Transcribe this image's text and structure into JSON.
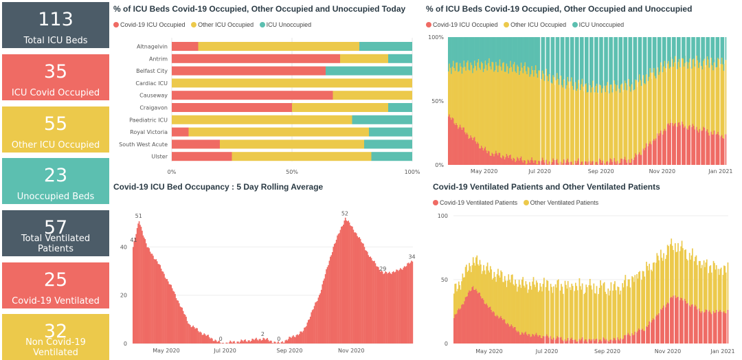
{
  "colors": {
    "covid": "#ef6b64",
    "other": "#ecc94b",
    "unoccupied": "#5cbfb0",
    "dark": "#4c5c68"
  },
  "kpis": [
    {
      "value": "113",
      "label": "Total ICU Beds",
      "color": "dark"
    },
    {
      "value": "35",
      "label": "ICU Covid Occupied",
      "color": "red"
    },
    {
      "value": "55",
      "label": "Other ICU Occupied",
      "color": "yellow"
    },
    {
      "value": "23",
      "label": "Unoccupied Beds",
      "color": "teal"
    },
    {
      "value": "57",
      "label": "Total Ventilated Patients",
      "color": "dark"
    },
    {
      "value": "25",
      "label": "Covid-19 Ventilated",
      "color": "red"
    },
    {
      "value": "32",
      "label": "Non Covid-19 Ventilated",
      "color": "yellow"
    }
  ],
  "chart_data": [
    {
      "type": "bar",
      "orientation": "horizontal",
      "stacked": "100%",
      "title": "% of ICU Beds Covid-19 Occupied, Other Occupied and Unoccupied Today",
      "legend": [
        "Covid-19 ICU Occupied",
        "Other ICU Occupied",
        "ICU Unoccupied"
      ],
      "categories": [
        "Altnagelvin",
        "Antrim",
        "Belfast City",
        "Cardiac ICU",
        "Causeway",
        "Craigavon",
        "Paediatric ICU",
        "Royal Victoria",
        "South West Acute",
        "Ulster"
      ],
      "series": [
        {
          "name": "Covid-19 ICU Occupied",
          "values": [
            11,
            70,
            64,
            0,
            67,
            50,
            0,
            7,
            20,
            25
          ]
        },
        {
          "name": "Other ICU Occupied",
          "values": [
            67,
            20,
            0,
            100,
            33,
            40,
            75,
            75,
            60,
            58
          ]
        },
        {
          "name": "ICU Unoccupied",
          "values": [
            22,
            10,
            36,
            0,
            0,
            10,
            25,
            18,
            20,
            17
          ]
        }
      ],
      "xticks": [
        "0%",
        "50%",
        "100%"
      ]
    },
    {
      "type": "bar",
      "stacked": "100%",
      "title": "% of ICU Beds Covid-19 Occupied, Other Occupied and Unoccupied",
      "legend": [
        "Covid-19 ICU Occupied",
        "Other ICU Occupied",
        "ICU Unoccupied"
      ],
      "x_range": [
        "2020-03-25",
        "2021-01-05"
      ],
      "knots": {
        "covid": [
          [
            0,
            38
          ],
          [
            40,
            10
          ],
          [
            80,
            3
          ],
          [
            150,
            2
          ],
          [
            190,
            4
          ],
          [
            230,
            33
          ],
          [
            260,
            28
          ],
          [
            286,
            22
          ]
        ],
        "other": [
          [
            0,
            38
          ],
          [
            40,
            68
          ],
          [
            80,
            72
          ],
          [
            120,
            62
          ],
          [
            150,
            58
          ],
          [
            190,
            58
          ],
          [
            230,
            47
          ],
          [
            260,
            52
          ],
          [
            286,
            57
          ]
        ]
      },
      "xticks": [
        "May 2020",
        "Jul 2020",
        "Sep 2020",
        "Nov 2020",
        "Jan 2021"
      ],
      "yticks": [
        "0%",
        "50%",
        "100%"
      ]
    },
    {
      "type": "area",
      "title": "Covid-19 ICU Bed Occupancy : 5 Day Rolling Average",
      "x_range": [
        "2020-04-01",
        "2021-01-05"
      ],
      "knots": [
        [
          0,
          40
        ],
        [
          6,
          51
        ],
        [
          14,
          40
        ],
        [
          24,
          34
        ],
        [
          40,
          22
        ],
        [
          56,
          8
        ],
        [
          70,
          4
        ],
        [
          88,
          0
        ],
        [
          130,
          2
        ],
        [
          146,
          0
        ],
        [
          170,
          5
        ],
        [
          186,
          20
        ],
        [
          200,
          40
        ],
        [
          212,
          52
        ],
        [
          224,
          45
        ],
        [
          238,
          35
        ],
        [
          250,
          29
        ],
        [
          264,
          30
        ],
        [
          279,
          34
        ]
      ],
      "labels": [
        [
          "51",
          6,
          51
        ],
        [
          "41",
          1,
          41
        ],
        [
          "0",
          88,
          0
        ],
        [
          "2",
          130,
          2
        ],
        [
          "0",
          146,
          0
        ],
        [
          "52",
          212,
          52
        ],
        [
          "29",
          250,
          29
        ],
        [
          "34",
          279,
          34
        ]
      ],
      "xticks": [
        "May 2020",
        "Jul 2020",
        "Sep 2020",
        "Nov 2020"
      ],
      "yticks": [
        0,
        20,
        40
      ],
      "ylim": [
        0,
        55
      ]
    },
    {
      "type": "bar",
      "stacked": true,
      "title": "Covid-19 Ventilated Patients and Other Ventilated Patients",
      "legend": [
        "Covid-19 Ventilated Patients",
        "Other Ventilated Patients"
      ],
      "x_range": [
        "2020-03-25",
        "2021-01-05"
      ],
      "knots": {
        "covid": [
          [
            0,
            20
          ],
          [
            20,
            45
          ],
          [
            40,
            25
          ],
          [
            70,
            8
          ],
          [
            120,
            3
          ],
          [
            170,
            3
          ],
          [
            200,
            12
          ],
          [
            230,
            38
          ],
          [
            260,
            25
          ],
          [
            286,
            25
          ]
        ],
        "other": [
          [
            0,
            20
          ],
          [
            20,
            20
          ],
          [
            40,
            30
          ],
          [
            70,
            38
          ],
          [
            120,
            42
          ],
          [
            170,
            40
          ],
          [
            200,
            45
          ],
          [
            230,
            40
          ],
          [
            260,
            37
          ],
          [
            286,
            32
          ]
        ]
      },
      "xticks": [
        "May 2020",
        "Jul 2020",
        "Sep 2020",
        "Nov 2020",
        "Jan 2021"
      ],
      "yticks": [
        0,
        50,
        100
      ],
      "ylim": [
        0,
        100
      ]
    }
  ]
}
